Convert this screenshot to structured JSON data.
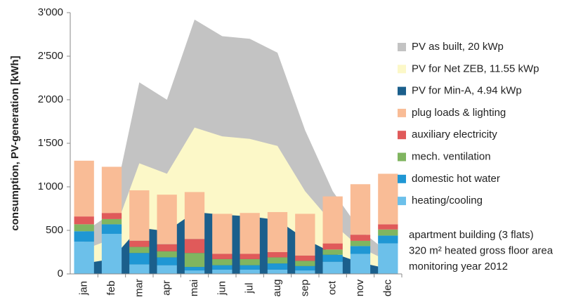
{
  "chart_data": {
    "type": "combo",
    "y_label": "consumption, PV-generation  [kWh]",
    "categories": [
      "jan",
      "feb",
      "mar",
      "apr",
      "mai",
      "jun",
      "jul",
      "aug",
      "sep",
      "oct",
      "nov",
      "dec"
    ],
    "ylim": [
      0,
      3000
    ],
    "yticks": [
      0,
      500,
      {
        "value": 1000,
        "label": "1'000"
      },
      {
        "value": 1500,
        "label": "1'500"
      },
      {
        "value": 2000,
        "label": "2'000"
      },
      {
        "value": 2500,
        "label": "2'500"
      },
      {
        "value": 3000,
        "label": "3'000"
      }
    ],
    "series": [
      {
        "name": "PV as built, 20 kWp",
        "type": "area",
        "color": "#c3c3c3",
        "values": [
          480,
          700,
          2200,
          2000,
          2920,
          2730,
          2700,
          2540,
          1650,
          950,
          500,
          250
        ]
      },
      {
        "name": "PV for Net ZEB, 11.55 kWp",
        "type": "area",
        "color": "#fcf8c8",
        "values": [
          280,
          400,
          1270,
          1150,
          1680,
          1580,
          1550,
          1470,
          950,
          580,
          300,
          150
        ]
      },
      {
        "name": "PV for Min-A, 4.94 kWp",
        "type": "area",
        "color": "#1b5f8c",
        "values": [
          120,
          170,
          530,
          490,
          710,
          680,
          660,
          620,
          400,
          240,
          130,
          60
        ]
      },
      {
        "name": "plug loads & lighting",
        "type": "bar",
        "color": "#f9bc96",
        "values": [
          640,
          530,
          580,
          570,
          540,
          460,
          470,
          460,
          480,
          540,
          580,
          580
        ]
      },
      {
        "name": "auxiliary electricity",
        "type": "bar",
        "color": "#e05a5a",
        "values": [
          90,
          70,
          70,
          80,
          160,
          60,
          60,
          60,
          60,
          70,
          70,
          60
        ]
      },
      {
        "name": "mech. ventilation",
        "type": "bar",
        "color": "#80b560",
        "values": [
          80,
          60,
          70,
          70,
          160,
          70,
          70,
          70,
          60,
          60,
          60,
          70
        ]
      },
      {
        "name": "domestic hot water",
        "type": "bar",
        "color": "#1f97d4",
        "values": [
          120,
          110,
          130,
          90,
          40,
          50,
          50,
          70,
          50,
          80,
          90,
          90
        ]
      },
      {
        "name": "heating/cooling",
        "type": "bar",
        "color": "#6cc0ea",
        "values": [
          370,
          460,
          110,
          100,
          40,
          50,
          50,
          50,
          40,
          140,
          230,
          350
        ]
      }
    ],
    "annotations": [
      "apartment building (3 flats)",
      "320 m² heated gross floor area",
      "monitoring year 2012"
    ]
  }
}
